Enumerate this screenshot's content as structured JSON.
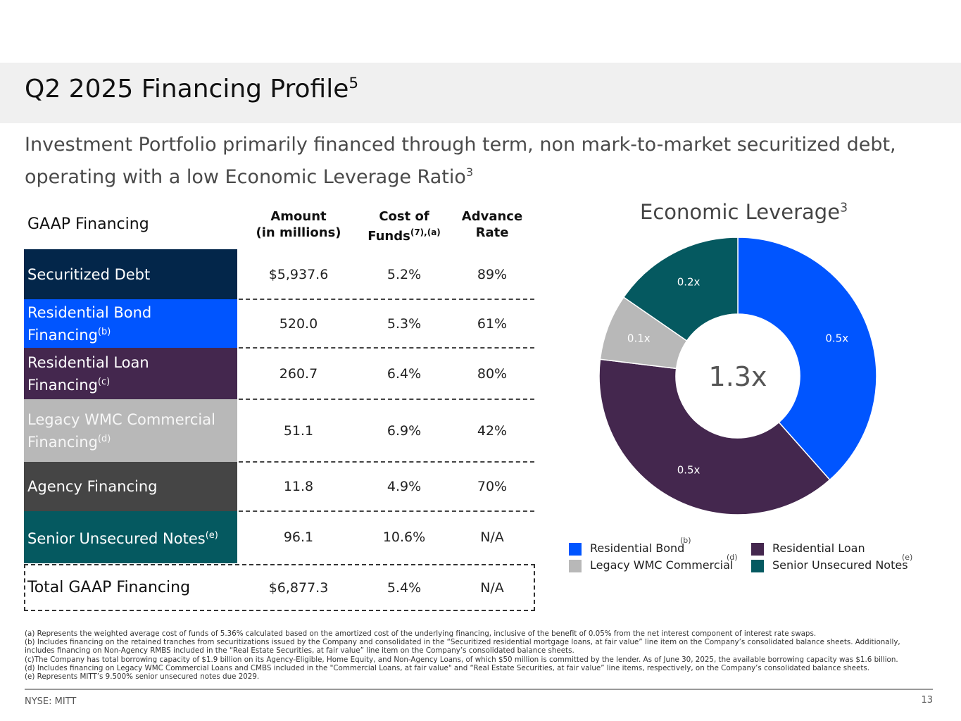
{
  "title": {
    "text": "Q2 2025 Financing Profile",
    "sup": "5"
  },
  "subtitle": {
    "line1": "Investment Portfolio primarily financed through term, non mark-to-market securitized debt,",
    "line2": "operating with a low Economic Leverage Ratio",
    "sup": "3"
  },
  "table": {
    "section_label": "GAAP Financing",
    "headers": {
      "amount_l1": "Amount",
      "amount_l2": "(in millions)",
      "cost_l1": "Cost of",
      "cost_l2": "Funds",
      "cost_sup": "(7),(a)",
      "adv_l1": "Advance",
      "adv_l2": "Rate"
    },
    "rows": [
      {
        "label": "Securitized Debt",
        "sup": "",
        "amount": "$5,937.6",
        "cost": "5.2%",
        "advance": "89%",
        "color": "#03264a"
      },
      {
        "label": "Residential Bond Financing",
        "sup": "(b)",
        "amount": "520.0",
        "cost": "5.3%",
        "advance": "61%",
        "color": "#0055ff"
      },
      {
        "label": "Residential Loan Financing",
        "sup": "(c)",
        "amount": "260.7",
        "cost": "6.4%",
        "advance": "80%",
        "color": "#44274e"
      },
      {
        "label": "Legacy WMC Commercial Financing",
        "sup": "(d)",
        "amount": "51.1",
        "cost": "6.9%",
        "advance": "42%",
        "color": "#b8b8b8"
      },
      {
        "label": "Agency Financing",
        "sup": "",
        "amount": "11.8",
        "cost": "4.9%",
        "advance": "70%",
        "color": "#454545"
      },
      {
        "label": "Senior Unsecured Notes",
        "sup": "(e)",
        "amount": "96.1",
        "cost": "10.6%",
        "advance": "N/A",
        "color": "#055960"
      }
    ],
    "total": {
      "label": "Total GAAP Financing",
      "amount": "$6,877.3",
      "cost": "5.4%",
      "advance": "N/A"
    }
  },
  "chart_data": {
    "type": "pie",
    "title": "Economic Leverage",
    "title_sup": "3",
    "center_label": "1.3x",
    "slices": [
      {
        "name": "Residential Bond",
        "value": 0.5,
        "label": "0.5x",
        "color": "#0055ff"
      },
      {
        "name": "Residential Loan",
        "value": 0.5,
        "label": "0.5x",
        "color": "#44274e"
      },
      {
        "name": "Legacy WMC Commercial",
        "value": 0.1,
        "label": "0.1x",
        "color": "#b8b8b8"
      },
      {
        "name": "Senior Unsecured Notes",
        "value": 0.2,
        "label": "0.2x",
        "color": "#055960"
      }
    ],
    "legend": [
      {
        "label": "Residential Bond",
        "fn": "(b)",
        "color": "#0055ff"
      },
      {
        "label": "Residential Loan",
        "fn": "",
        "color": "#44274e"
      },
      {
        "label": "Legacy WMC Commercial",
        "fn": "(d)",
        "color": "#b8b8b8"
      },
      {
        "label": "Senior Unsecured Notes",
        "fn": "(e)",
        "color": "#055960"
      }
    ]
  },
  "footnotes": [
    "(a) Represents the weighted average cost of funds of 5.36% calculated based on the amortized cost of the underlying financing, inclusive of the benefit of 0.05% from the net interest component of interest rate swaps.",
    "(b) Includes financing on the retained tranches from securitizations issued by the Company and consolidated in the “Securitized residential mortgage loans, at fair value” line item on the Company’s consolidated balance sheets. Additionally,",
    "includes financing on Non-Agency RMBS included in the “Real Estate Securities, at fair value” line item on the Company’s consolidated balance sheets.",
    "(c)The Company has total borrowing capacity of $1.9 billion on its Agency-Eligible, Home Equity, and Non-Agency Loans, of which $50 million is committed by the lender. As of June 30, 2025, the available borrowing capacity was $1.6 billion.",
    "(d) Includes financing on Legacy WMC Commercial Loans and CMBS included in the \"Commercial Loans, at fair value\" and “Real Estate Securities, at fair value” line items, respectively, on the Company’s consolidated balance sheets.",
    "(e) Represents MITT’s 9.500% senior unsecured notes due 2029."
  ],
  "footer": {
    "ticker": "NYSE: MITT",
    "page": "13"
  }
}
